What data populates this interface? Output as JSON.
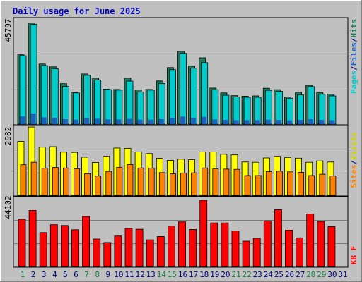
{
  "colors": {
    "background": "#c0c0c0",
    "panel": "#c0c0c0",
    "grid": "#7a7a7a",
    "title": "#0000c0",
    "hits": "#00cccc",
    "files": "#1f7a5a",
    "pages": "#1f5fbf",
    "visits": "#ffff00",
    "sites": "#ff8000",
    "kbytes": "#ff0000",
    "weekend_label": "#0f8040",
    "weekday_label": "#000080",
    "sep": "#000080"
  },
  "chart_data": [
    {
      "type": "bar",
      "title": "Daily usage for June 2025",
      "categories": [
        "1",
        "2",
        "3",
        "4",
        "5",
        "6",
        "7",
        "8",
        "9",
        "10",
        "11",
        "12",
        "13",
        "14",
        "15",
        "16",
        "17",
        "18",
        "19",
        "20",
        "21",
        "22",
        "23",
        "24",
        "25",
        "26",
        "27",
        "28",
        "29",
        "30",
        "31"
      ],
      "weekend_days": [
        "1",
        "7",
        "8",
        "14",
        "15",
        "21",
        "22",
        "28",
        "29"
      ],
      "ymax_label": "45797",
      "ylim": [
        0,
        45797
      ],
      "legend": {
        "pages": "Pages",
        "files": "Files",
        "hits": "Hits",
        "sep": "/"
      },
      "series": [
        {
          "name": "Files",
          "values": [
            30000,
            43800,
            26000,
            24800,
            17500,
            13800,
            21700,
            19900,
            15100,
            15000,
            19900,
            14800,
            15000,
            18700,
            24500,
            31500,
            25100,
            28700,
            15600,
            13500,
            12300,
            12100,
            12200,
            15500,
            14900,
            11800,
            13800,
            16800,
            13700,
            13000,
            0
          ]
        },
        {
          "name": "Hits",
          "values": [
            29600,
            43200,
            25300,
            24000,
            16300,
            13500,
            21100,
            19100,
            14900,
            14700,
            18600,
            13900,
            14700,
            17600,
            23600,
            30600,
            24200,
            26600,
            14900,
            12500,
            11800,
            11600,
            11600,
            14600,
            14200,
            11200,
            12600,
            16200,
            12900,
            12200,
            0
          ]
        },
        {
          "name": "Pages",
          "values": [
            3200,
            4500,
            2800,
            2600,
            2000,
            1800,
            2400,
            2200,
            1900,
            1900,
            2100,
            1800,
            1800,
            2000,
            2600,
            3100,
            2500,
            3000,
            1900,
            1700,
            1600,
            1600,
            1600,
            1800,
            1700,
            1500,
            1700,
            2000,
            1700,
            1600,
            0
          ]
        }
      ]
    },
    {
      "type": "bar",
      "categories": [
        "1",
        "2",
        "3",
        "4",
        "5",
        "6",
        "7",
        "8",
        "9",
        "10",
        "11",
        "12",
        "13",
        "14",
        "15",
        "16",
        "17",
        "18",
        "19",
        "20",
        "21",
        "22",
        "23",
        "24",
        "25",
        "26",
        "27",
        "28",
        "29",
        "30",
        "31"
      ],
      "ymax_label": "2982",
      "ylim": [
        0,
        2982
      ],
      "legend": {
        "sites": "Sites",
        "visits": "Visits",
        "sep": "/"
      },
      "series": [
        {
          "name": "Visits",
          "values": [
            2350,
            2980,
            2100,
            2120,
            1880,
            1870,
            1660,
            1430,
            1700,
            2060,
            2040,
            1890,
            1820,
            1610,
            1520,
            1570,
            1550,
            1890,
            1890,
            1790,
            1760,
            1450,
            1440,
            1630,
            1700,
            1650,
            1620,
            1440,
            1500,
            1450,
            0
          ]
        },
        {
          "name": "Sites",
          "values": [
            1330,
            1440,
            1180,
            1210,
            1190,
            1160,
            940,
            840,
            1040,
            1220,
            1340,
            1190,
            1180,
            990,
            940,
            970,
            980,
            1190,
            1150,
            1140,
            1130,
            860,
            860,
            1030,
            1050,
            1020,
            1000,
            860,
            920,
            850,
            0
          ]
        }
      ]
    },
    {
      "type": "bar",
      "categories": [
        "1",
        "2",
        "3",
        "4",
        "5",
        "6",
        "7",
        "8",
        "9",
        "10",
        "11",
        "12",
        "13",
        "14",
        "15",
        "16",
        "17",
        "18",
        "19",
        "20",
        "21",
        "22",
        "23",
        "24",
        "25",
        "26",
        "27",
        "28",
        "29",
        "30",
        "31"
      ],
      "ymax_label": "44102",
      "ylim": [
        0,
        44102
      ],
      "legend": {
        "kbytes": "KB F"
      },
      "series": [
        {
          "name": "KB F",
          "values": [
            31500,
            37300,
            22600,
            27800,
            27300,
            24500,
            33300,
            18300,
            16000,
            20300,
            25400,
            24800,
            17800,
            20000,
            27000,
            29700,
            24700,
            44100,
            29000,
            29000,
            23700,
            16900,
            18800,
            30400,
            37800,
            24200,
            19100,
            35000,
            30000,
            26500,
            0
          ]
        }
      ]
    }
  ]
}
